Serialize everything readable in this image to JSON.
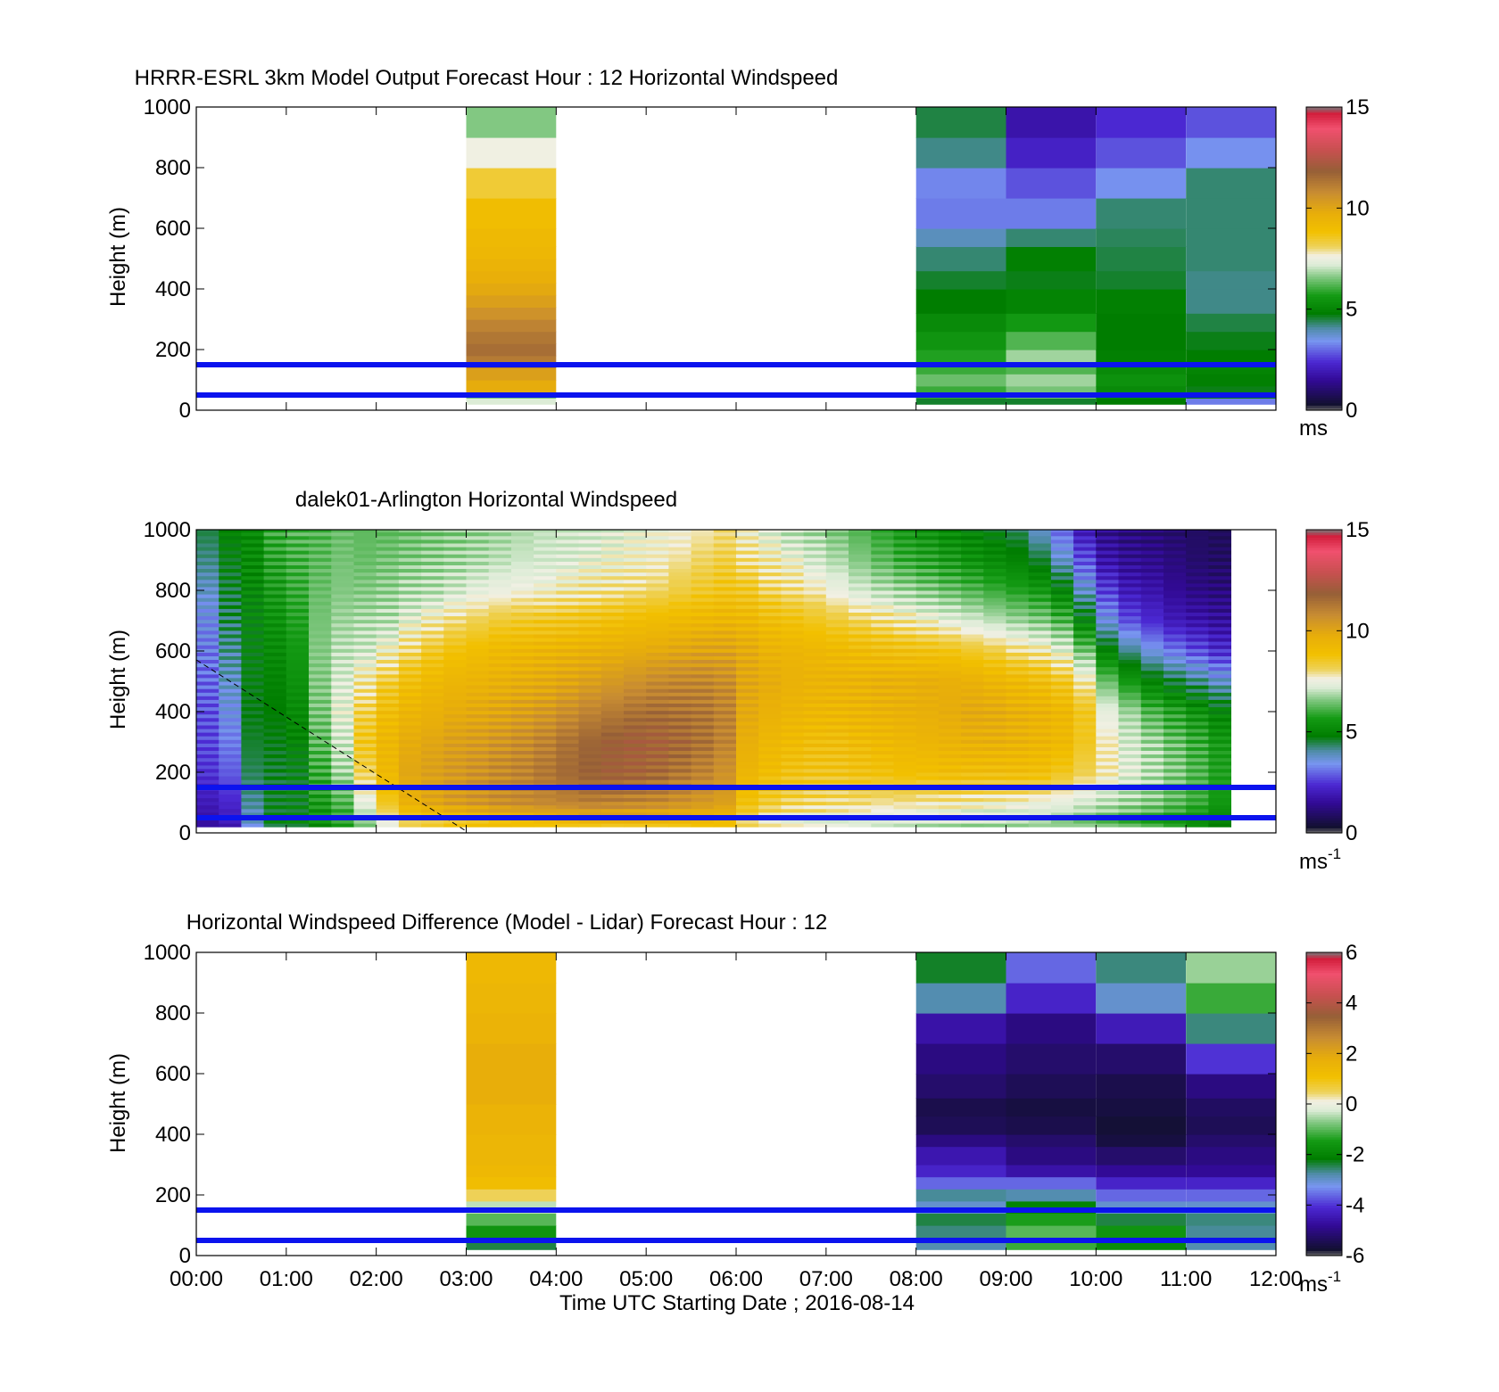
{
  "chart_data": [
    {
      "type": "heatmap",
      "title": "HRRR-ESRL 3km Model Output   Forecast Hour : 12 Horizontal Windspeed",
      "ylabel": "Height (m)",
      "xlabel": "",
      "colorbar_unit": "ms",
      "colorbar_unit_sup": "",
      "ylim": [
        0,
        1000
      ],
      "yticks": [
        0,
        200,
        400,
        600,
        800,
        1000
      ],
      "clim": [
        0,
        15
      ],
      "cticks": [
        0,
        5,
        10,
        15
      ],
      "reference_lines_m": [
        50,
        150
      ],
      "grid": false,
      "columns": [
        {
          "start": "03:00",
          "end": "04:00",
          "bottom": [
            20,
            40,
            60,
            100,
            140,
            180,
            220,
            260,
            300,
            340,
            380,
            420,
            460,
            500,
            540,
            600,
            700,
            800,
            900
          ],
          "values": [
            7.2,
            6.5,
            9.8,
            10.2,
            11.2,
            11.5,
            11.3,
            11.0,
            10.6,
            10.2,
            9.9,
            9.7,
            9.5,
            9.3,
            9.2,
            9.0,
            8.4,
            7.6,
            6.6
          ]
        },
        {
          "start": "08:00",
          "end": "09:00",
          "bottom": [
            20,
            40,
            80,
            120,
            160,
            200,
            260,
            320,
            400,
            460,
            540,
            600,
            700,
            800,
            900
          ],
          "values": [
            4.6,
            6.0,
            6.4,
            6.0,
            5.8,
            5.5,
            5.2,
            4.8,
            4.6,
            4.3,
            3.9,
            3.2,
            3.3,
            4.2,
            4.5
          ]
        },
        {
          "start": "09:00",
          "end": "10:00",
          "bottom": [
            20,
            40,
            80,
            120,
            160,
            200,
            260,
            320,
            400,
            460,
            540,
            600,
            700,
            800,
            900
          ],
          "values": [
            4.6,
            6.5,
            6.8,
            6.2,
            6.8,
            6.2,
            5.6,
            5.0,
            4.7,
            4.9,
            4.3,
            3.2,
            2.8,
            2.2,
            1.8
          ]
        },
        {
          "start": "10:00",
          "end": "11:00",
          "bottom": [
            20,
            40,
            80,
            120,
            160,
            200,
            260,
            320,
            400,
            460,
            540,
            600,
            700,
            800,
            900
          ],
          "values": [
            4.8,
            5.2,
            5.4,
            5.2,
            4.9,
            4.8,
            4.8,
            4.9,
            4.6,
            4.5,
            4.4,
            4.3,
            3.4,
            2.8,
            2.4
          ]
        },
        {
          "start": "11:00",
          "end": "12:00",
          "bottom": [
            20,
            40,
            80,
            120,
            160,
            200,
            260,
            320,
            400,
            460,
            540,
            600,
            700,
            800,
            900
          ],
          "values": [
            3.2,
            4.7,
            4.9,
            5.0,
            4.8,
            4.7,
            4.5,
            4.2,
            4.2,
            4.3,
            4.3,
            4.3,
            4.3,
            3.4,
            2.8
          ]
        }
      ]
    },
    {
      "type": "heatmap",
      "title": "dalek01-Arlington  Horizontal Windspeed",
      "ylabel": "Height (m)",
      "xlabel": "",
      "colorbar_unit": "ms",
      "colorbar_unit_sup": "-1",
      "ylim": [
        0,
        1000
      ],
      "yticks": [
        0,
        200,
        400,
        600,
        800,
        1000
      ],
      "clim": [
        0,
        15
      ],
      "cticks": [
        0,
        5,
        10,
        15
      ],
      "reference_lines_m": [
        50,
        150
      ],
      "grid": false,
      "time_start": "00:00",
      "column_minutes": 15,
      "heights_m": [
        0,
        100,
        200,
        300,
        400,
        500,
        600,
        700,
        800,
        900,
        1000
      ],
      "profiles": [
        [
          1.5,
          2.0,
          2.5,
          2.7,
          2.8,
          3.0,
          3.2,
          3.4,
          3.8,
          4.2,
          4.5
        ],
        [
          1.8,
          2.3,
          2.9,
          3.2,
          3.5,
          3.8,
          4.1,
          4.4,
          4.6,
          4.8,
          5.0
        ],
        [
          3.5,
          4.1,
          4.4,
          4.6,
          4.7,
          4.8,
          4.9,
          5.0,
          5.1,
          5.2,
          5.2
        ],
        [
          4.8,
          4.7,
          4.6,
          4.7,
          4.8,
          5.0,
          5.2,
          5.4,
          5.6,
          5.8,
          6.0
        ],
        [
          4.9,
          4.8,
          4.8,
          5.0,
          5.2,
          5.4,
          5.6,
          5.8,
          6.0,
          6.1,
          6.2
        ],
        [
          5.2,
          5.6,
          6.0,
          6.3,
          6.5,
          6.6,
          6.6,
          6.5,
          6.4,
          6.3,
          6.2
        ],
        [
          5.6,
          6.2,
          6.8,
          7.2,
          7.4,
          7.3,
          7.0,
          6.8,
          6.6,
          6.5,
          6.4
        ],
        [
          6.2,
          7.4,
          8.2,
          8.6,
          8.3,
          7.8,
          7.2,
          6.9,
          6.6,
          6.4,
          6.3
        ],
        [
          7.0,
          8.6,
          9.2,
          9.3,
          9.0,
          8.4,
          7.6,
          7.0,
          6.7,
          6.5,
          6.3
        ],
        [
          7.5,
          9.6,
          10.0,
          9.8,
          9.4,
          8.9,
          8.1,
          7.4,
          6.9,
          6.6,
          6.4
        ],
        [
          7.6,
          10.0,
          10.2,
          10.0,
          9.6,
          9.2,
          8.5,
          7.7,
          7.0,
          6.7,
          6.5
        ],
        [
          7.8,
          10.3,
          10.4,
          10.2,
          9.8,
          9.4,
          8.8,
          8.0,
          7.2,
          6.8,
          6.6
        ],
        [
          7.9,
          10.5,
          10.6,
          10.3,
          9.9,
          9.5,
          9.0,
          8.2,
          7.4,
          6.9,
          6.7
        ],
        [
          8.0,
          10.7,
          10.8,
          10.5,
          10.0,
          9.6,
          9.2,
          8.4,
          7.5,
          7.0,
          6.8
        ],
        [
          8.0,
          10.8,
          11.0,
          10.7,
          10.2,
          9.7,
          9.3,
          8.5,
          7.6,
          7.1,
          6.9
        ],
        [
          8.1,
          10.9,
          11.3,
          11.0,
          10.4,
          9.8,
          9.4,
          8.6,
          7.6,
          7.2,
          7.0
        ],
        [
          8.1,
          11.0,
          11.6,
          11.4,
          10.7,
          10.0,
          9.5,
          8.7,
          7.7,
          7.3,
          7.1
        ],
        [
          8.2,
          11.1,
          11.8,
          11.7,
          11.0,
          10.2,
          9.6,
          8.8,
          7.8,
          7.4,
          7.2
        ],
        [
          8.2,
          11.0,
          11.9,
          11.9,
          11.2,
          10.4,
          9.7,
          8.9,
          7.9,
          7.5,
          7.3
        ],
        [
          8.3,
          10.9,
          11.8,
          12.0,
          11.4,
          10.6,
          9.8,
          9.0,
          8.0,
          7.6,
          7.4
        ],
        [
          8.3,
          10.8,
          11.6,
          11.9,
          11.5,
          10.8,
          9.9,
          9.1,
          8.1,
          7.7,
          7.5
        ],
        [
          8.3,
          10.6,
          11.3,
          11.7,
          11.4,
          10.9,
          10.0,
          9.2,
          8.3,
          7.9,
          7.6
        ],
        [
          8.4,
          10.4,
          11.0,
          11.4,
          11.3,
          10.9,
          10.1,
          9.3,
          8.5,
          8.1,
          7.8
        ],
        [
          8.4,
          10.2,
          10.6,
          11.0,
          11.0,
          10.7,
          10.1,
          9.4,
          8.7,
          8.3,
          8.0
        ],
        [
          7.8,
          8.8,
          9.4,
          9.7,
          9.9,
          10.0,
          9.8,
          9.3,
          8.6,
          8.0,
          7.6
        ],
        [
          7.4,
          8.4,
          9.0,
          9.3,
          9.6,
          9.8,
          9.5,
          9.0,
          8.2,
          7.7,
          7.3
        ],
        [
          7.2,
          8.2,
          8.8,
          9.1,
          9.4,
          9.6,
          9.4,
          8.8,
          8.0,
          7.5,
          7.0
        ],
        [
          7.1,
          8.1,
          8.7,
          9.0,
          9.3,
          9.5,
          9.3,
          8.6,
          7.8,
          7.2,
          6.8
        ],
        [
          7.0,
          8.0,
          8.7,
          9.0,
          9.3,
          9.5,
          9.2,
          8.4,
          7.5,
          6.9,
          6.5
        ],
        [
          6.9,
          8.0,
          8.8,
          9.1,
          9.4,
          9.5,
          9.1,
          8.2,
          7.2,
          6.6,
          6.2
        ],
        [
          6.8,
          7.9,
          8.8,
          9.2,
          9.5,
          9.6,
          9.0,
          8.0,
          7.0,
          6.3,
          5.9
        ],
        [
          6.8,
          7.9,
          8.9,
          9.3,
          9.6,
          9.6,
          8.9,
          7.8,
          6.8,
          6.0,
          5.6
        ],
        [
          6.7,
          7.8,
          8.9,
          9.4,
          9.7,
          9.7,
          8.8,
          7.6,
          6.6,
          5.8,
          5.4
        ],
        [
          6.7,
          7.8,
          9.0,
          9.5,
          9.8,
          9.7,
          8.7,
          7.4,
          6.4,
          5.6,
          5.2
        ],
        [
          6.6,
          7.7,
          9.0,
          9.6,
          9.9,
          9.6,
          8.5,
          7.2,
          6.2,
          5.4,
          5.0
        ],
        [
          6.6,
          7.6,
          9.0,
          9.6,
          9.8,
          9.4,
          8.3,
          7.0,
          6.0,
          5.2,
          4.8
        ],
        [
          6.5,
          7.6,
          9.0,
          9.5,
          9.6,
          9.2,
          8.0,
          6.8,
          5.8,
          5.0,
          4.4
        ],
        [
          6.5,
          7.5,
          8.9,
          9.4,
          9.5,
          9.0,
          7.8,
          6.6,
          5.6,
          4.6,
          3.8
        ],
        [
          6.3,
          7.4,
          8.6,
          9.2,
          9.3,
          8.6,
          7.4,
          6.2,
          5.0,
          3.8,
          3.0
        ],
        [
          6.2,
          7.2,
          8.2,
          8.6,
          8.6,
          7.8,
          6.5,
          5.0,
          3.8,
          2.8,
          2.0
        ],
        [
          6.0,
          7.0,
          7.8,
          7.8,
          7.4,
          6.4,
          5.0,
          3.6,
          2.6,
          1.8,
          1.4
        ],
        [
          5.8,
          6.8,
          7.4,
          7.2,
          6.8,
          5.6,
          4.2,
          2.8,
          2.0,
          1.5,
          1.2
        ],
        [
          5.6,
          6.6,
          7.0,
          6.8,
          6.2,
          5.0,
          3.6,
          2.4,
          1.8,
          1.4,
          1.1
        ],
        [
          5.4,
          6.3,
          6.6,
          6.4,
          5.8,
          4.6,
          3.2,
          2.0,
          1.5,
          1.2,
          1.0
        ],
        [
          5.0,
          6.0,
          6.2,
          6.0,
          5.4,
          4.2,
          2.8,
          1.8,
          1.3,
          1.0,
          0.9
        ],
        [
          4.6,
          5.6,
          5.8,
          5.6,
          5.0,
          3.8,
          2.4,
          1.6,
          1.2,
          0.9,
          0.8
        ]
      ]
    },
    {
      "type": "heatmap",
      "title": "Horizontal Windspeed Difference (Model - Lidar) Forecast Hour : 12",
      "ylabel": "Height (m)",
      "xlabel": "Time UTC  Starting Date ; 2016-08-14",
      "colorbar_unit": "ms",
      "colorbar_unit_sup": "-1",
      "ylim": [
        0,
        1000
      ],
      "yticks": [
        0,
        200,
        400,
        600,
        800,
        1000
      ],
      "clim": [
        -6,
        6
      ],
      "cticks": [
        -6,
        -4,
        -2,
        0,
        2,
        4,
        6
      ],
      "reference_lines_m": [
        50,
        150
      ],
      "grid": false,
      "xticks": [
        "00:00",
        "01:00",
        "02:00",
        "03:00",
        "04:00",
        "05:00",
        "06:00",
        "07:00",
        "08:00",
        "09:00",
        "10:00",
        "11:00",
        "12:00"
      ],
      "columns": [
        {
          "start": "03:00",
          "end": "04:00",
          "bottom": [
            20,
            60,
            100,
            140,
            180,
            220,
            260,
            300,
            400,
            500,
            600,
            700,
            800,
            900
          ],
          "values": [
            -2.4,
            -1.6,
            -1.0,
            -0.4,
            0.5,
            1.2,
            1.4,
            1.5,
            1.6,
            1.8,
            1.8,
            1.6,
            1.5,
            1.4
          ]
        },
        {
          "start": "08:00",
          "end": "09:00",
          "bottom": [
            20,
            60,
            100,
            140,
            180,
            220,
            260,
            300,
            360,
            400,
            460,
            520,
            600,
            700,
            800,
            900
          ],
          "values": [
            -2.8,
            -2.6,
            -2.4,
            -3.0,
            -2.7,
            -3.6,
            -4.2,
            -4.5,
            -5.0,
            -5.4,
            -5.5,
            -5.2,
            -5.0,
            -4.6,
            -2.8,
            -2.3
          ]
        },
        {
          "start": "09:00",
          "end": "10:00",
          "bottom": [
            20,
            60,
            100,
            140,
            180,
            220,
            260,
            300,
            360,
            400,
            460,
            520,
            600,
            700,
            800,
            900
          ],
          "values": [
            -1.2,
            -1.0,
            -1.4,
            -2.0,
            -2.8,
            -3.6,
            -4.6,
            -5.0,
            -5.2,
            -5.5,
            -5.6,
            -5.4,
            -5.2,
            -5.0,
            -4.2,
            -3.6
          ]
        },
        {
          "start": "10:00",
          "end": "11:00",
          "bottom": [
            20,
            60,
            100,
            140,
            180,
            220,
            260,
            300,
            360,
            400,
            460,
            520,
            600,
            700,
            800,
            900
          ],
          "values": [
            -1.8,
            -1.6,
            -2.4,
            -3.0,
            -3.6,
            -4.2,
            -4.8,
            -5.2,
            -5.6,
            -5.7,
            -5.6,
            -5.5,
            -5.2,
            -4.4,
            -3.0,
            -2.6
          ]
        },
        {
          "start": "11:00",
          "end": "12:00",
          "bottom": [
            20,
            60,
            100,
            140,
            180,
            220,
            260,
            300,
            360,
            400,
            460,
            520,
            600,
            700,
            800,
            900
          ],
          "values": [
            -2.8,
            -2.7,
            -2.6,
            -3.0,
            -3.6,
            -4.2,
            -4.8,
            -5.0,
            -5.2,
            -5.4,
            -5.3,
            -5.0,
            -4.0,
            -2.6,
            -1.2,
            -0.6
          ]
        }
      ]
    }
  ]
}
